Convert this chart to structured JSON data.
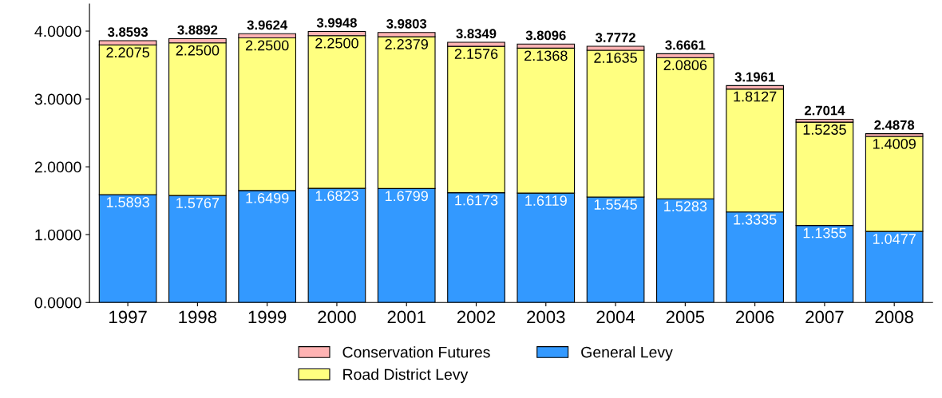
{
  "chart_data": {
    "type": "bar",
    "stacked": true,
    "categories": [
      "1997",
      "1998",
      "1999",
      "2000",
      "2001",
      "2002",
      "2003",
      "2004",
      "2005",
      "2006",
      "2007",
      "2008"
    ],
    "series": [
      {
        "name": "General Levy",
        "color": "#3399ff",
        "values": [
          1.5893,
          1.5767,
          1.6499,
          1.6823,
          1.6799,
          1.6173,
          1.6119,
          1.5545,
          1.5283,
          1.3335,
          1.1355,
          1.0477
        ],
        "value_labels": [
          "1.5893",
          "1.5767",
          "1.6499",
          "1.6823",
          "1.6799",
          "1.6173",
          "1.6119",
          "1.5545",
          "1.5283",
          "1.3335",
          "1.1355",
          "1.0477"
        ]
      },
      {
        "name": "Road District Levy",
        "color": "#ffff80",
        "values": [
          2.2075,
          2.25,
          2.25,
          2.25,
          2.2379,
          2.1576,
          2.1368,
          2.1635,
          2.0806,
          1.8127,
          1.5235,
          1.4009
        ],
        "value_labels": [
          "2.2075",
          "2.2500",
          "2.2500",
          "2.2500",
          "2.2379",
          "2.1576",
          "2.1368",
          "2.1635",
          "2.0806",
          "1.8127",
          "1.5235",
          "1.4009"
        ]
      },
      {
        "name": "Conservation Futures",
        "color": "#ffb3b3",
        "values": [
          0.0625,
          0.0625,
          0.0625,
          0.0625,
          0.0625,
          0.06,
          0.0609,
          0.0592,
          0.0572,
          0.0499,
          0.0424,
          0.0392
        ]
      }
    ],
    "totals": [
      "3.8593",
      "3.8892",
      "3.9624",
      "3.9948",
      "3.9803",
      "3.8349",
      "3.8096",
      "3.7772",
      "3.6661",
      "3.1961",
      "2.7014",
      "2.4878"
    ],
    "ylim": [
      0,
      4.4
    ],
    "yticks": [
      {
        "value": 0,
        "label": "0.0000"
      },
      {
        "value": 1,
        "label": "1.0000"
      },
      {
        "value": 2,
        "label": "2.0000"
      },
      {
        "value": 3,
        "label": "3.0000"
      },
      {
        "value": 4,
        "label": "4.0000"
      }
    ],
    "legend": "bottom",
    "grid": false
  }
}
